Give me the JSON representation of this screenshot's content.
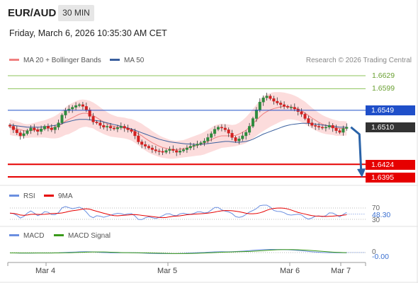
{
  "header": {
    "pair": "EUR/AUD",
    "timeframe": "30 MIN",
    "timestamp": "Friday, March 6, 2026 10:35:30 AM CET"
  },
  "legend": {
    "ma20_bb": "MA 20 + Bollinger Bands",
    "ma50": "MA 50",
    "credit": "Research © 2026 Trading Central"
  },
  "levels": {
    "r2": "1.6629",
    "r1": "1.6599",
    "pivot": "1.6549",
    "current": "1.6510",
    "s1": "1.6424",
    "s2": "1.6395"
  },
  "rsi": {
    "label": "RSI",
    "ma_label": "9MA",
    "level_70": "70",
    "level_30": "30",
    "value": "48.30"
  },
  "macd": {
    "label": "MACD",
    "signal_label": "MACD Signal",
    "zero": "0",
    "value": "-0.00"
  },
  "xaxis": {
    "ticks": [
      "Mar 4",
      "Mar 5",
      "Mar 6",
      "Mar 7"
    ]
  },
  "colors": {
    "resistance": "#8dc35a",
    "pivot": "#1f4fc9",
    "support": "#e60000",
    "bull": "#2e8b3d",
    "bear": "#d32020",
    "ma50": "#3a5f9e",
    "bollinger": "#f7b8b8",
    "arrow": "#2a63a8"
  },
  "chart_data": {
    "type": "candlestick",
    "y_range": [
      1.6395,
      1.6629
    ],
    "closes": [
      1.6512,
      1.6504,
      1.6497,
      1.649,
      1.6495,
      1.6502,
      1.6508,
      1.6504,
      1.65,
      1.6506,
      1.6512,
      1.6508,
      1.6504,
      1.651,
      1.652,
      1.6538,
      1.6548,
      1.6552,
      1.6556,
      1.656,
      1.6562,
      1.6558,
      1.655,
      1.6535,
      1.6522,
      1.652,
      1.6514,
      1.651,
      1.6512,
      1.6508,
      1.6506,
      1.6509,
      1.6512,
      1.6508,
      1.6504,
      1.65,
      1.649,
      1.6476,
      1.647,
      1.6466,
      1.6462,
      1.6458,
      1.6455,
      1.6454,
      1.6452,
      1.6456,
      1.6459,
      1.6456,
      1.6452,
      1.6455,
      1.6458,
      1.6462,
      1.6466,
      1.6468,
      1.6471,
      1.6474,
      1.6478,
      1.6486,
      1.6495,
      1.6505,
      1.651,
      1.6508,
      1.6504,
      1.6496,
      1.6486,
      1.6478,
      1.6483,
      1.649,
      1.6498,
      1.6512,
      1.653,
      1.655,
      1.6568,
      1.6578,
      1.6582,
      1.6576,
      1.657,
      1.6566,
      1.6562,
      1.6558,
      1.6556,
      1.6556,
      1.6552,
      1.6546,
      1.654,
      1.653,
      1.652,
      1.6514,
      1.6512,
      1.651,
      1.6508,
      1.651,
      1.6514,
      1.6508,
      1.6502,
      1.6498,
      1.6507,
      1.651
    ],
    "ma20": [
      1.651,
      1.6508,
      1.6506,
      1.6504,
      1.6502,
      1.6501,
      1.6502,
      1.6503,
      1.6504,
      1.6505,
      1.6506,
      1.6507,
      1.6508,
      1.651,
      1.6513,
      1.6518,
      1.6524,
      1.6528,
      1.6532,
      1.6536,
      1.654,
      1.6542,
      1.6542,
      1.654,
      1.6537,
      1.6532,
      1.6527,
      1.6522,
      1.6518,
      1.6514,
      1.6512,
      1.651,
      1.6509,
      1.6508,
      1.6506,
      1.6504,
      1.65,
      1.6495,
      1.649,
      1.6484,
      1.6479,
      1.6474,
      1.647,
      1.6466,
      1.6463,
      1.6461,
      1.6459,
      1.6458,
      1.6458,
      1.6459,
      1.646,
      1.6462,
      1.6464,
      1.6466,
      1.6468,
      1.647,
      1.6473,
      1.6477,
      1.6481,
      1.6485,
      1.6488,
      1.649,
      1.649,
      1.649,
      1.649,
      1.6491,
      1.6494,
      1.6498,
      1.6503,
      1.651,
      1.6518,
      1.6526,
      1.6534,
      1.6541,
      1.6546,
      1.655,
      1.6553,
      1.6555,
      1.6557,
      1.6558,
      1.6558,
      1.6557,
      1.6555,
      1.6552,
      1.6548,
      1.6543,
      1.6537,
      1.6531,
      1.6526,
      1.6521,
      1.6517,
      1.6514,
      1.6512,
      1.651,
      1.6508,
      1.6507,
      1.6507,
      1.6507
    ],
    "ma50": [
      1.6515,
      1.6514,
      1.6513,
      1.6512,
      1.6511,
      1.651,
      1.651,
      1.651,
      1.651,
      1.651,
      1.6511,
      1.6512,
      1.6513,
      1.6514,
      1.6516,
      1.6518,
      1.6521,
      1.6523,
      1.6525,
      1.6527,
      1.6528,
      1.6528,
      1.6528,
      1.6527,
      1.6526,
      1.6525,
      1.6524,
      1.6522,
      1.652,
      1.6518,
      1.6516,
      1.6514,
      1.6512,
      1.651,
      1.6508,
      1.6506,
      1.6503,
      1.65,
      1.6497,
      1.6494,
      1.6491,
      1.6488,
      1.6485,
      1.6482,
      1.648,
      1.6478,
      1.6476,
      1.6475,
      1.6474,
      1.6473,
      1.6472,
      1.6471,
      1.6471,
      1.647,
      1.647,
      1.647,
      1.6471,
      1.6472,
      1.6473,
      1.6474,
      1.6475,
      1.6476,
      1.6477,
      1.6477,
      1.6476,
      1.6475,
      1.6475,
      1.6476,
      1.6477,
      1.6479,
      1.6482,
      1.6486,
      1.649,
      1.6494,
      1.6497,
      1.65,
      1.6503,
      1.6506,
      1.6509,
      1.6512,
      1.6514,
      1.6516,
      1.6517,
      1.6518,
      1.6519,
      1.6519,
      1.6519,
      1.6518,
      1.6517,
      1.6516,
      1.6515,
      1.6514,
      1.6513,
      1.6512,
      1.6511,
      1.651,
      1.651,
      1.651
    ],
    "bb_width": [
      0.0018,
      0.0018,
      0.0017,
      0.0017,
      0.0016,
      0.0016,
      0.0016,
      0.0017,
      0.0018,
      0.0019,
      0.002,
      0.0022,
      0.0024,
      0.0026,
      0.0028,
      0.003,
      0.0032,
      0.0034,
      0.0034,
      0.0034,
      0.0033,
      0.0032,
      0.0031,
      0.0031,
      0.003,
      0.003,
      0.0029,
      0.0028,
      0.0027,
      0.0026,
      0.0025,
      0.0024,
      0.0024,
      0.0024,
      0.0024,
      0.0025,
      0.0026,
      0.0027,
      0.0028,
      0.0028,
      0.0028,
      0.0027,
      0.0026,
      0.0025,
      0.0024,
      0.0023,
      0.0022,
      0.0021,
      0.002,
      0.002,
      0.002,
      0.0021,
      0.0022,
      0.0023,
      0.0024,
      0.0025,
      0.0026,
      0.0027,
      0.0028,
      0.0029,
      0.0029,
      0.0028,
      0.0027,
      0.0026,
      0.0025,
      0.0025,
      0.0026,
      0.0028,
      0.003,
      0.0032,
      0.0034,
      0.0036,
      0.0038,
      0.004,
      0.004,
      0.0039,
      0.0038,
      0.0036,
      0.0034,
      0.0032,
      0.003,
      0.0029,
      0.0028,
      0.0027,
      0.0026,
      0.0026,
      0.0025,
      0.0024,
      0.0023,
      0.0022,
      0.0021,
      0.002,
      0.0019,
      0.0018,
      0.0018,
      0.0017,
      0.0017,
      0.0016
    ],
    "forecast": {
      "from": 1.651,
      "to": 1.64
    }
  }
}
